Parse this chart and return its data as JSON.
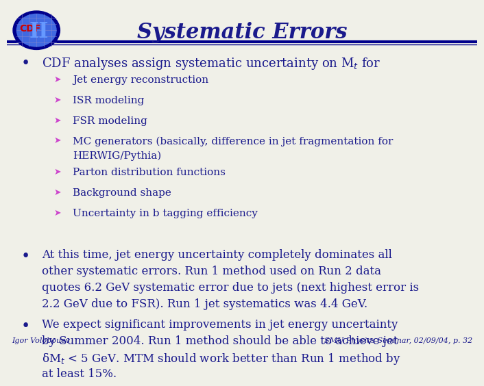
{
  "title": "Systematic Errors",
  "title_color": "#1a1a8c",
  "background_color": "#f0f0e8",
  "header_line_color": "#00008b",
  "bullet_color": "#1a1a8c",
  "arrow_color": "#cc44cc",
  "text_color": "#1a1a8c",
  "footer_left": "Igor Volobouev",
  "footer_right": "SMU Physics Seminar, 02/09/04, p. 32",
  "bullet1": "CDF analyses assign systematic uncertainty on M$_t$ for",
  "sub_bullets": [
    "Jet energy reconstruction",
    "ISR modeling",
    "FSR modeling",
    "MC generators (basically, difference in jet fragmentation for\n        HERWIG/Pythia)",
    "Parton distribution functions",
    "Background shape",
    "Uncertainty in b tagging efficiency"
  ],
  "bullet2": "At this time, jet energy uncertainty completely dominates all other systematic errors. Run 1 method used on Run 2 data quotes 6.2 GeV systematic error due to jets (next highest error is 2.2 GeV due to FSR). Run 1 jet systematics was 4.4 GeV.",
  "bullet3": "We expect significant improvements in jet energy uncertainty by Summer 2004. Run 1 method should be able to achieve jet δM$_t$ < 5 GeV. MTM should work better than Run 1 method by at least 15%."
}
